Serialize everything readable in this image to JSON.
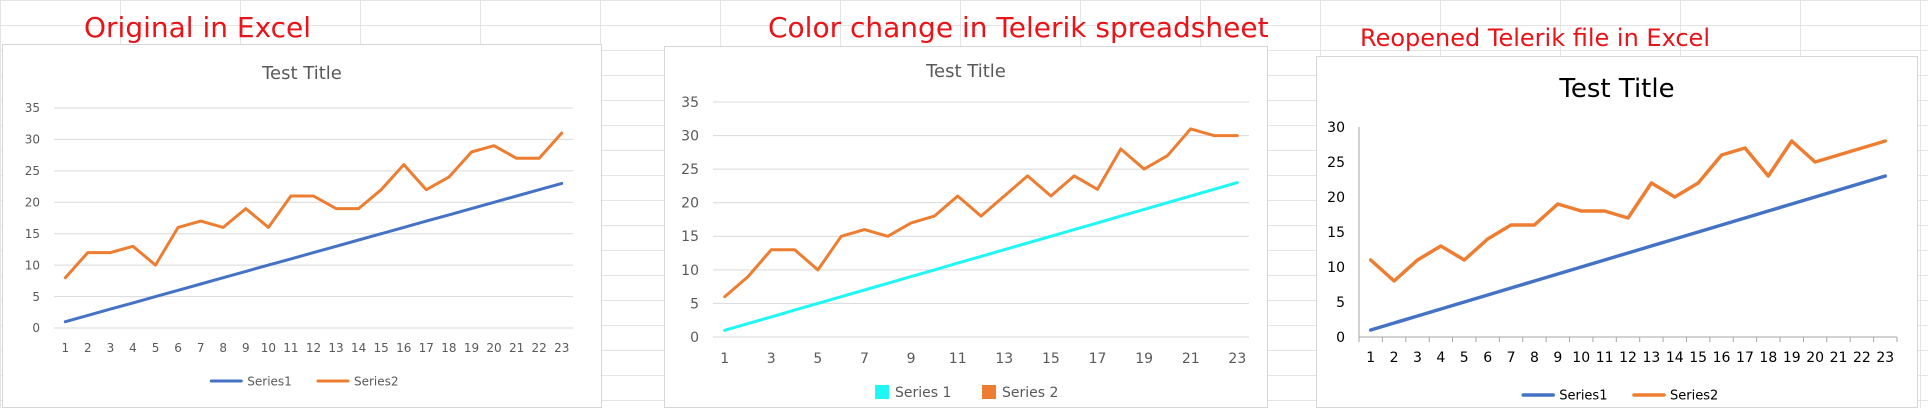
{
  "captions": {
    "original": "Original in Excel",
    "telerik": "Color change in Telerik spreadsheet",
    "reopened": "Reopened Telerik file in Excel"
  },
  "chart_data": [
    {
      "type": "line",
      "title": "Test Title",
      "x": [
        1,
        2,
        3,
        4,
        5,
        6,
        7,
        8,
        9,
        10,
        11,
        12,
        13,
        14,
        15,
        16,
        17,
        18,
        19,
        20,
        21,
        22,
        23
      ],
      "x_tick_labels": [
        "1",
        "2",
        "3",
        "4",
        "5",
        "6",
        "7",
        "8",
        "9",
        "10",
        "11",
        "12",
        "13",
        "14",
        "15",
        "16",
        "17",
        "18",
        "19",
        "20",
        "21",
        "22",
        "23"
      ],
      "ylim": [
        0,
        35
      ],
      "y_ticks": [
        0,
        5,
        10,
        15,
        20,
        25,
        30,
        35
      ],
      "grid": true,
      "legend_position": "bottom",
      "series": [
        {
          "name": "Series1",
          "color": "#4472c4",
          "values": [
            1,
            2,
            3,
            4,
            5,
            6,
            7,
            8,
            9,
            10,
            11,
            12,
            13,
            14,
            15,
            16,
            17,
            18,
            19,
            20,
            21,
            22,
            23
          ]
        },
        {
          "name": "Series2",
          "color": "#ed7d31",
          "values": [
            8,
            12,
            12,
            13,
            10,
            16,
            17,
            16,
            19,
            16,
            21,
            21,
            19,
            19,
            22,
            26,
            22,
            24,
            28,
            29,
            27,
            27,
            31
          ]
        }
      ]
    },
    {
      "type": "line",
      "title": "Test Title",
      "x": [
        1,
        2,
        3,
        4,
        5,
        6,
        7,
        8,
        9,
        10,
        11,
        12,
        13,
        14,
        15,
        16,
        17,
        18,
        19,
        20,
        21,
        22,
        23
      ],
      "x_tick_labels": [
        "1",
        "3",
        "5",
        "7",
        "9",
        "11",
        "13",
        "15",
        "17",
        "19",
        "21",
        "23"
      ],
      "ylim": [
        0,
        35
      ],
      "y_ticks": [
        0,
        5,
        10,
        15,
        20,
        25,
        30,
        35
      ],
      "grid": true,
      "legend_position": "bottom",
      "series": [
        {
          "name": "Series 1",
          "color": "#21f6f6",
          "values": [
            1,
            2,
            3,
            4,
            5,
            6,
            7,
            8,
            9,
            10,
            11,
            12,
            13,
            14,
            15,
            16,
            17,
            18,
            19,
            20,
            21,
            22,
            23
          ]
        },
        {
          "name": "Series 2",
          "color": "#ed7d31",
          "values": [
            6,
            9,
            13,
            13,
            10,
            15,
            16,
            15,
            17,
            18,
            21,
            18,
            21,
            24,
            21,
            24,
            22,
            28,
            25,
            27,
            31,
            30,
            30
          ]
        }
      ]
    },
    {
      "type": "line",
      "title": "Test Title",
      "x": [
        1,
        2,
        3,
        4,
        5,
        6,
        7,
        8,
        9,
        10,
        11,
        12,
        13,
        14,
        15,
        16,
        17,
        18,
        19,
        20,
        21,
        22,
        23
      ],
      "x_tick_labels": [
        "1",
        "2",
        "3",
        "4",
        "5",
        "6",
        "7",
        "8",
        "9",
        "10",
        "11",
        "12",
        "13",
        "14",
        "15",
        "16",
        "17",
        "18",
        "19",
        "20",
        "21",
        "22",
        "23"
      ],
      "ylim": [
        0,
        30
      ],
      "y_ticks": [
        0,
        5,
        10,
        15,
        20,
        25,
        30
      ],
      "grid": false,
      "legend_position": "bottom",
      "series": [
        {
          "name": "Series1",
          "color": "#4472c4",
          "values": [
            1,
            2,
            3,
            4,
            5,
            6,
            7,
            8,
            9,
            10,
            11,
            12,
            13,
            14,
            15,
            16,
            17,
            18,
            19,
            20,
            21,
            22,
            23
          ]
        },
        {
          "name": "Series2",
          "color": "#ed7d31",
          "values": [
            11,
            8,
            11,
            13,
            11,
            14,
            16,
            16,
            19,
            18,
            18,
            17,
            22,
            20,
            22,
            26,
            27,
            23,
            28,
            25,
            26,
            27,
            28
          ]
        }
      ]
    }
  ]
}
